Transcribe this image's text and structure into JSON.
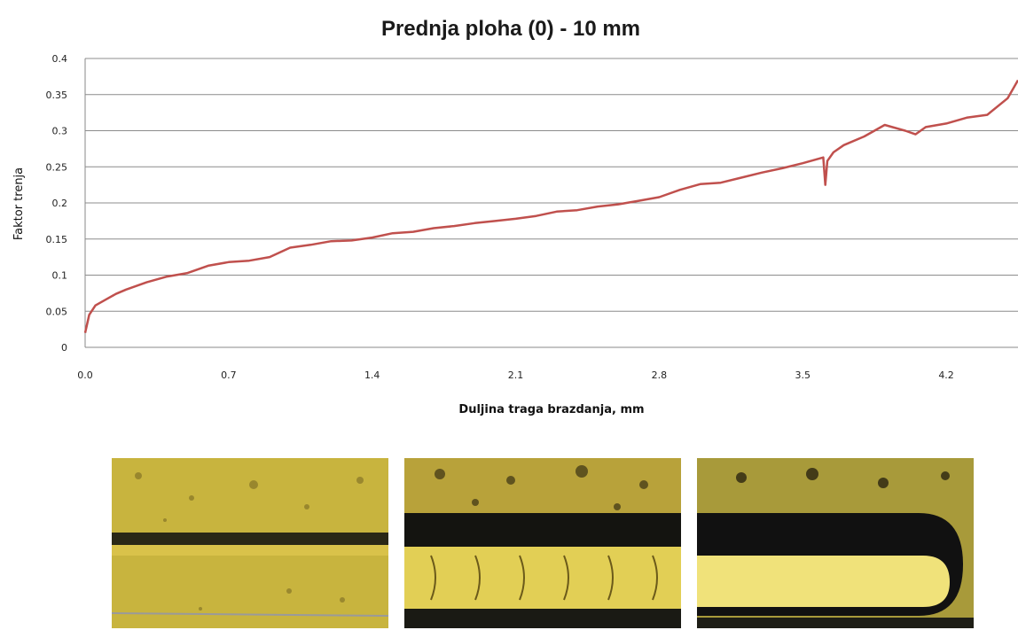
{
  "chart_data": {
    "type": "line",
    "title": "Prednja ploha (0) - 10 mm",
    "xlabel": "Duljina traga brazdanja, mm",
    "ylabel": "Faktor trenja",
    "xlim": [
      0,
      4.55
    ],
    "ylim": [
      0,
      0.4
    ],
    "x_ticks": [
      "0.0",
      "0.7",
      "1.4",
      "2.1",
      "2.8",
      "3.5",
      "4.2"
    ],
    "y_ticks": [
      "0.4",
      "0.35",
      "0.3",
      "0.25",
      "0.2",
      "0.15",
      "0.1",
      "0.05",
      "0"
    ],
    "grid": "horizontal",
    "series": [
      {
        "color": "#c0504d",
        "x": [
          0.0,
          0.02,
          0.05,
          0.1,
          0.15,
          0.2,
          0.3,
          0.4,
          0.5,
          0.6,
          0.7,
          0.8,
          0.9,
          1.0,
          1.1,
          1.2,
          1.3,
          1.4,
          1.5,
          1.6,
          1.7,
          1.8,
          1.9,
          2.0,
          2.1,
          2.2,
          2.3,
          2.4,
          2.5,
          2.6,
          2.7,
          2.8,
          2.9,
          3.0,
          3.1,
          3.2,
          3.3,
          3.4,
          3.5,
          3.6,
          3.61,
          3.62,
          3.65,
          3.7,
          3.8,
          3.9,
          4.0,
          4.05,
          4.1,
          4.2,
          4.3,
          4.4,
          4.5,
          4.55
        ],
        "y": [
          0.02,
          0.045,
          0.058,
          0.066,
          0.074,
          0.08,
          0.09,
          0.098,
          0.103,
          0.113,
          0.118,
          0.12,
          0.125,
          0.138,
          0.142,
          0.147,
          0.148,
          0.152,
          0.158,
          0.16,
          0.165,
          0.168,
          0.172,
          0.175,
          0.178,
          0.182,
          0.188,
          0.19,
          0.195,
          0.198,
          0.203,
          0.208,
          0.218,
          0.226,
          0.228,
          0.235,
          0.242,
          0.248,
          0.255,
          0.263,
          0.225,
          0.258,
          0.27,
          0.28,
          0.292,
          0.308,
          0.3,
          0.295,
          0.305,
          0.31,
          0.318,
          0.322,
          0.345,
          0.37
        ]
      }
    ]
  },
  "images": [
    {
      "name": "micrograph-1",
      "bg": "#c8b43e",
      "groove": "#2a2816",
      "groove_core": "#d9c24a"
    },
    {
      "name": "micrograph-2",
      "bg": "#b8a23a",
      "groove": "#141410",
      "groove_core": "#e2cf55"
    },
    {
      "name": "micrograph-3",
      "bg": "#a89a3a",
      "groove": "#111111",
      "groove_core": "#f0e27a"
    }
  ]
}
